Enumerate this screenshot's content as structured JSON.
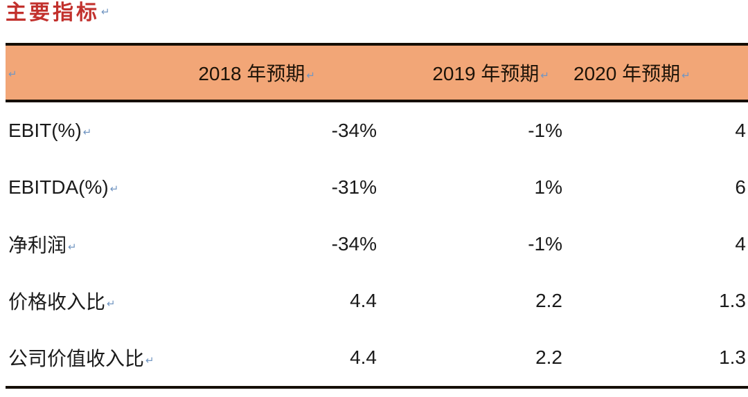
{
  "page": {
    "title": "主要指标",
    "pilcrow_mark": "↵"
  },
  "colors": {
    "title_red": "#c2312d",
    "header_background_orange": "#f2a677",
    "table_border_black": "#150e05",
    "pilcrow_blue": "#7296c2",
    "body_text": "#1a1a1a"
  },
  "table": {
    "columns": [
      "2018 年预期",
      "2019 年预期",
      "2020 年预期"
    ],
    "rows": [
      {
        "label": "EBIT(%)",
        "values": [
          "-34%",
          "-1%",
          "4"
        ]
      },
      {
        "label": "EBITDA(%)",
        "values": [
          "-31%",
          "1%",
          "6"
        ]
      },
      {
        "label": "净利润",
        "values": [
          "-34%",
          "-1%",
          "4"
        ]
      },
      {
        "label": "价格收入比",
        "values": [
          "4.4",
          "2.2",
          "1.3"
        ]
      },
      {
        "label": "公司价值收入比",
        "values": [
          "4.4",
          "2.2",
          "1.3"
        ]
      }
    ]
  }
}
